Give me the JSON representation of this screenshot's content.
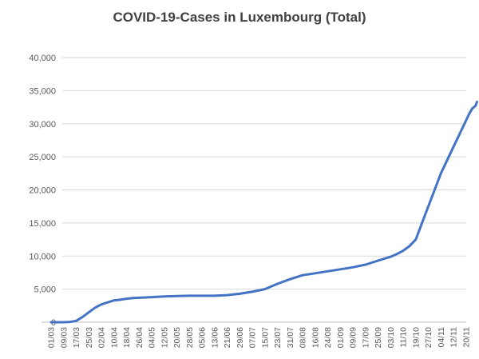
{
  "chart_data": {
    "type": "line",
    "title": "COVID-19-Cases in Luxembourg (Total)",
    "xlabel": "",
    "ylabel": "",
    "ylim": [
      0,
      40000
    ],
    "y_ticks": [
      0,
      5000,
      10000,
      15000,
      20000,
      25000,
      30000,
      35000,
      40000
    ],
    "y_tick_labels": [
      "0",
      "5,000",
      "10,000",
      "15,000",
      "20,000",
      "25,000",
      "30,000",
      "35,000",
      "40,000"
    ],
    "x_tick_labels": [
      "01/03",
      "09/03",
      "17/03",
      "25/03",
      "02/04",
      "10/04",
      "18/04",
      "26/04",
      "04/05",
      "12/05",
      "20/05",
      "28/05",
      "05/06",
      "13/06",
      "21/06",
      "29/06",
      "07/07",
      "15/07",
      "23/07",
      "31/07",
      "08/08",
      "16/08",
      "24/08",
      "01/09",
      "09/09",
      "17/09",
      "25/09",
      "03/10",
      "11/10",
      "19/10",
      "27/10",
      "04/11",
      "12/11",
      "20/11"
    ],
    "grid": "horizontal",
    "legend": "none",
    "line_color": "#4472c4",
    "series": [
      {
        "x": [
          "01/03",
          "09/03",
          "13/03",
          "17/03",
          "21/03",
          "25/03",
          "29/03",
          "02/04",
          "06/04",
          "10/04",
          "14/04",
          "18/04",
          "22/04",
          "26/04",
          "04/05",
          "12/05",
          "20/05",
          "28/05",
          "05/06",
          "13/06",
          "21/06",
          "29/06",
          "07/07",
          "15/07",
          "23/07",
          "31/07",
          "08/08",
          "16/08",
          "24/08",
          "01/09",
          "09/09",
          "17/09",
          "25/09",
          "03/10",
          "07/10",
          "11/10",
          "15/10",
          "19/10",
          "23/10",
          "27/10",
          "31/10",
          "04/11",
          "08/11",
          "12/11",
          "16/11",
          "20/11",
          "22/11",
          "24/11",
          "26/11",
          "27/11"
        ],
        "values": [
          0,
          0,
          50,
          200,
          800,
          1500,
          2200,
          2700,
          3000,
          3300,
          3400,
          3550,
          3650,
          3700,
          3800,
          3900,
          3950,
          4000,
          4000,
          4000,
          4100,
          4300,
          4600,
          5000,
          5800,
          6500,
          7100,
          7400,
          7700,
          8000,
          8300,
          8700,
          9300,
          9900,
          10300,
          10800,
          11500,
          12500,
          15000,
          17500,
          20000,
          22500,
          24500,
          26500,
          28500,
          30500,
          31500,
          32300,
          32700,
          33300
        ]
      }
    ]
  }
}
